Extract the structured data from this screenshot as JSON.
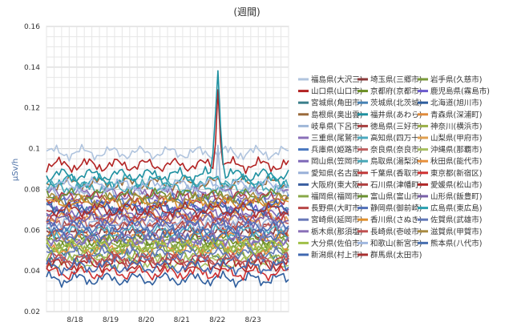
{
  "chart_data": {
    "type": "line",
    "title": "(週間)",
    "ylabel": "μSv/h",
    "xlabel": "",
    "ylim": [
      0.02,
      0.16
    ],
    "yticks": [
      "0.02",
      "0.04",
      "0.06",
      "0.08",
      "0.1",
      "0.12",
      "0.14",
      "0.16"
    ],
    "x_ticks": [
      "8/18",
      "8/19",
      "8/20",
      "8/21",
      "8/22",
      "8/23"
    ],
    "x_range_days": [
      17.2,
      24.0
    ],
    "grid": true,
    "legend_position": "right",
    "series": [
      {
        "name": "福島県(大沢三)",
        "color": "#b0c4de",
        "level": 0.098
      },
      {
        "name": "埼玉県(三郷市)",
        "color": "#8b3a3a",
        "level": 0.058
      },
      {
        "name": "岩手県(久慈市)",
        "color": "#7a9a3a",
        "level": 0.052
      },
      {
        "name": "山口県(山口市)",
        "color": "#b22222",
        "level": 0.092
      },
      {
        "name": "京都府(京都市)",
        "color": "#6b8e23",
        "level": 0.055
      },
      {
        "name": "鹿児島県(霧島市)",
        "color": "#6a5acd",
        "level": 0.072
      },
      {
        "name": "宮城県(角田市)",
        "color": "#3c7f8c",
        "level": 0.047
      },
      {
        "name": "茨城県(北茨城)",
        "color": "#4682b4",
        "level": 0.068
      },
      {
        "name": "北海道(旭川市)",
        "color": "#2e5e9e",
        "level": 0.036
      },
      {
        "name": "島根県(奥出雲)",
        "color": "#9a6a3a",
        "level": 0.083
      },
      {
        "name": "福井県(あわら)",
        "color": "#1e90a0",
        "level": 0.087
      },
      {
        "name": "青森県(深浦町)",
        "color": "#e08a3a",
        "level": 0.057
      },
      {
        "name": "岐阜県(下呂市)",
        "color": "#a0b8d8",
        "level": 0.079
      },
      {
        "name": "徳島県(三好市)",
        "color": "#a84040",
        "level": 0.061
      },
      {
        "name": "神奈川(横浜市)",
        "color": "#9ab048",
        "level": 0.049
      },
      {
        "name": "三重県(尾鷲市)",
        "color": "#8a6fb8",
        "level": 0.078
      },
      {
        "name": "高知県(四万十)",
        "color": "#4aaac0",
        "level": 0.059
      },
      {
        "name": "山梨県(甲府市)",
        "color": "#e0a050",
        "level": 0.066
      },
      {
        "name": "兵庫県(姫路市)",
        "color": "#4a78c0",
        "level": 0.074
      },
      {
        "name": "奈良県(奈良市)",
        "color": "#c06060",
        "level": 0.064
      },
      {
        "name": "沖縄県(那覇市)",
        "color": "#a8c060",
        "level": 0.044
      },
      {
        "name": "岡山県(笠岡市)",
        "color": "#7e68b8",
        "level": 0.069
      },
      {
        "name": "鳥取県(湯梨浜)",
        "color": "#48a8b8",
        "level": 0.081
      },
      {
        "name": "秋田県(能代市)",
        "color": "#e8903c",
        "level": 0.051
      },
      {
        "name": "愛知県(名古屋)",
        "color": "#98b0d8",
        "level": 0.063
      },
      {
        "name": "千葉県(香取市)",
        "color": "#c03838",
        "level": 0.067
      },
      {
        "name": "東京都(新宿区)",
        "color": "#d03030",
        "level": 0.039
      },
      {
        "name": "大阪府(東大阪)",
        "color": "#3a5fa0",
        "level": 0.071
      },
      {
        "name": "石川県(津幡町)",
        "color": "#b04040",
        "level": 0.076
      },
      {
        "name": "愛媛県(松山市)",
        "color": "#b02828",
        "level": 0.043
      },
      {
        "name": "福岡県(福岡市)",
        "color": "#88a848",
        "level": 0.053
      },
      {
        "name": "富山県(富山市)",
        "color": "#6a9030",
        "level": 0.077
      },
      {
        "name": "山形県(飯豊町)",
        "color": "#7860a8",
        "level": 0.065
      },
      {
        "name": "長野県(大町市)",
        "color": "#b84848",
        "level": 0.046
      },
      {
        "name": "静岡県(御前崎)",
        "color": "#5070b8",
        "level": 0.062
      },
      {
        "name": "広島県(東広島)",
        "color": "#2aa0b0",
        "level": 0.084
      },
      {
        "name": "宮崎県(延岡市)",
        "color": "#6878b8",
        "level": 0.054
      },
      {
        "name": "香川県(さぬき)",
        "color": "#e0902c",
        "level": 0.073
      },
      {
        "name": "佐賀県(武雄市)",
        "color": "#6078b8",
        "level": 0.048
      },
      {
        "name": "栃木県(那須塩)",
        "color": "#8a70b8",
        "level": 0.056
      },
      {
        "name": "長崎県(壱岐市)",
        "color": "#c05050",
        "level": 0.045
      },
      {
        "name": "滋賀県(甲賀市)",
        "color": "#a88a40",
        "level": 0.075
      },
      {
        "name": "大分県(佐伯市)",
        "color": "#a0c048",
        "level": 0.052
      },
      {
        "name": "和歌山(新宮市)",
        "color": "#a0b8e0",
        "level": 0.082
      },
      {
        "name": "熊本県(八代市)",
        "color": "#4870b0",
        "level": 0.058
      },
      {
        "name": "新潟県(村上市)",
        "color": "#4068b0",
        "level": 0.042
      },
      {
        "name": "群馬県(太田市)",
        "color": "#a83030",
        "level": 0.07
      }
    ]
  }
}
